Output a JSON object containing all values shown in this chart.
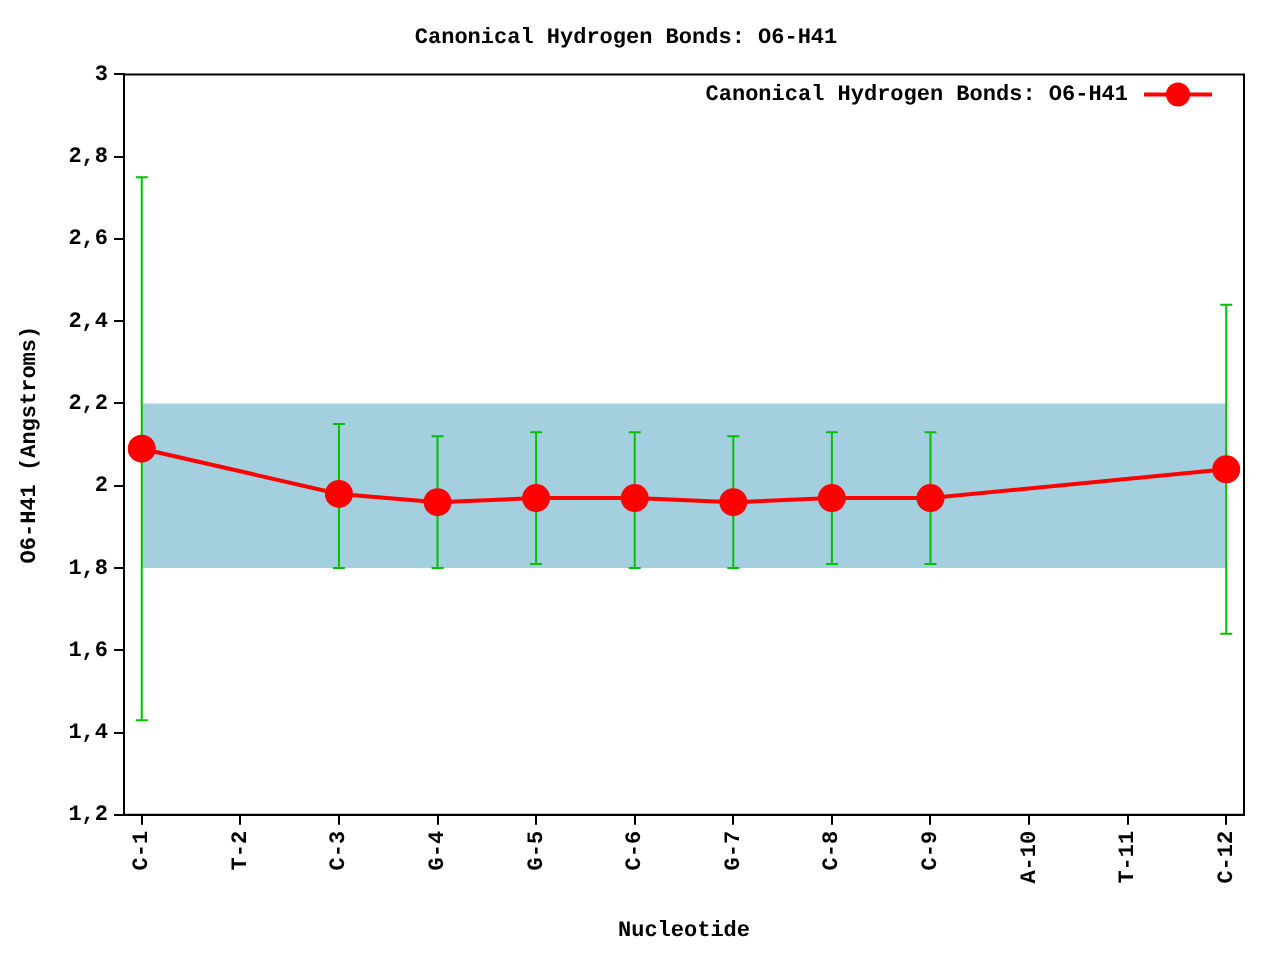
{
  "chart_data": {
    "type": "line",
    "title": "Canonical Hydrogen Bonds: O6-H41",
    "xlabel": "Nucleotide",
    "ylabel": "O6-H41 (Angstroms)",
    "categories": [
      "C-1",
      "T-2",
      "C-3",
      "G-4",
      "G-5",
      "C-6",
      "G-7",
      "C-8",
      "C-9",
      "A-10",
      "T-11",
      "C-12"
    ],
    "series": [
      {
        "name": "Canonical Hydrogen Bonds: O6-H41",
        "color": "#ff0000",
        "values": [
          2.09,
          null,
          1.98,
          1.96,
          1.97,
          1.97,
          1.96,
          1.97,
          1.97,
          null,
          null,
          2.04
        ],
        "errors": [
          [
            1.43,
            2.75
          ],
          null,
          [
            1.8,
            2.15
          ],
          [
            1.8,
            2.12
          ],
          [
            1.81,
            2.13
          ],
          [
            1.8,
            2.13
          ],
          [
            1.8,
            2.12
          ],
          [
            1.81,
            2.13
          ],
          [
            1.81,
            2.13
          ],
          null,
          null,
          [
            1.64,
            2.44
          ]
        ]
      }
    ],
    "ylim": [
      1.2,
      3
    ],
    "yticks": [
      {
        "value": 1.2,
        "label": "1,2"
      },
      {
        "value": 1.4,
        "label": "1,4"
      },
      {
        "value": 1.6,
        "label": "1,6"
      },
      {
        "value": 1.8,
        "label": "1,8"
      },
      2,
      {
        "value": 2.2,
        "label": "2,2"
      },
      {
        "value": 2.4,
        "label": "2,4"
      },
      {
        "value": 2.6,
        "label": "2,6"
      },
      {
        "value": 2.8,
        "label": "2,8"
      },
      3
    ],
    "bands": [
      {
        "axis": "y",
        "from": 1.8,
        "to": 2.2,
        "color": "#a3cfdf"
      }
    ],
    "legend": "top right",
    "marker": "circle",
    "line_style": "solid",
    "grid": false
  }
}
